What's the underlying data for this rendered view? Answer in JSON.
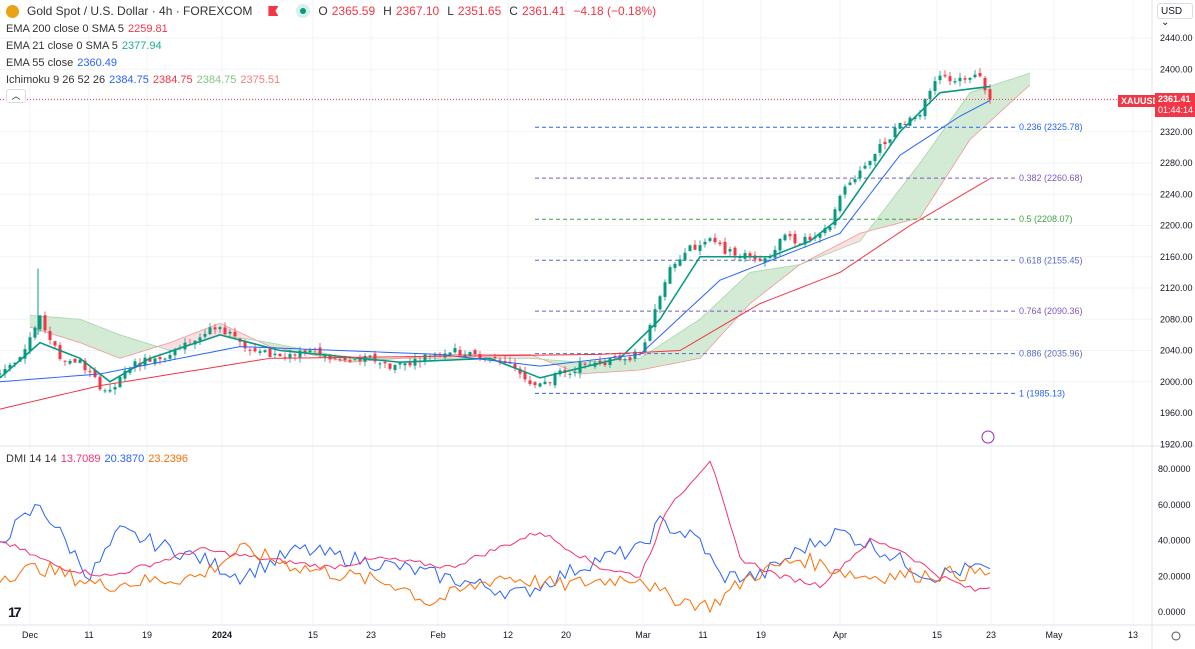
{
  "header": {
    "symbol": "Gold Spot / U.S. Dollar · 4h · FOREXCOM",
    "open_label": "O",
    "open": "2365.59",
    "high_label": "H",
    "high": "2367.10",
    "low_label": "L",
    "low": "2351.65",
    "close_label": "C",
    "close": "2361.41",
    "change": "−4.18 (−0.18%)"
  },
  "indicators": {
    "ema200": {
      "label": "EMA 200 close 0 SMA 5",
      "value": "2259.81"
    },
    "ema21": {
      "label": "EMA 21 close 0 SMA 5",
      "value": "2377.94"
    },
    "ema55": {
      "label": "EMA 55 close",
      "value": "2360.49"
    },
    "ichimoku": {
      "label": "Ichimoku 9 26 52 26",
      "v1": "2384.75",
      "v2": "2384.75",
      "v3": "2384.75",
      "v4": "2375.51"
    },
    "dmi": {
      "label": "DMI 14 14",
      "v1": "13.7089",
      "v2": "20.3870",
      "v3": "23.2396"
    }
  },
  "collapse_icon": "chevron-up-icon",
  "currency": "USD ⌄",
  "price_tag": {
    "symbol": "XAUUSD",
    "price": "2361.41",
    "countdown": "01:44:14"
  },
  "colors": {
    "up": "#089981",
    "down": "#f23645",
    "ema200": "#f23645",
    "ema21": "#089981",
    "ema55": "#2962ff",
    "cloud_up": "#c8e6c9",
    "cloud_down": "#f8d7da",
    "dmi_plus": "#2962ff",
    "dmi_minus": "#f7346e",
    "adx": "#ff6d00"
  },
  "chart_data": [
    {
      "type": "line",
      "title": "Gold Spot / U.S. Dollar 4h",
      "ylim": [
        1920,
        2460
      ],
      "yticks": [
        "2440.00",
        "2400.00",
        "2320.00",
        "2280.00",
        "2240.00",
        "2200.00",
        "2160.00",
        "2120.00",
        "2080.00",
        "2040.00",
        "2000.00",
        "1960.00",
        "1920.00"
      ],
      "xticks": [
        "Dec",
        "11",
        "19",
        "2024",
        "15",
        "23",
        "Feb",
        "12",
        "20",
        "Mar",
        "11",
        "19",
        "Apr",
        "15",
        "23",
        "May",
        "13"
      ],
      "xlim": [
        0,
        240
      ],
      "series": [
        {
          "name": "Price",
          "points": [
            [
              0,
              2010
            ],
            [
              4,
              2035
            ],
            [
              8,
              2080
            ],
            [
              12,
              2030
            ],
            [
              16,
              2025
            ],
            [
              20,
              1995
            ],
            [
              22,
              1985
            ],
            [
              26,
              2020
            ],
            [
              30,
              2030
            ],
            [
              34,
              2035
            ],
            [
              38,
              2050
            ],
            [
              42,
              2065
            ],
            [
              46,
              2065
            ],
            [
              50,
              2040
            ],
            [
              54,
              2035
            ],
            [
              58,
              2035
            ],
            [
              62,
              2040
            ],
            [
              66,
              2030
            ],
            [
              70,
              2025
            ],
            [
              74,
              2030
            ],
            [
              78,
              2020
            ],
            [
              82,
              2025
            ],
            [
              86,
              2035
            ],
            [
              90,
              2040
            ],
            [
              94,
              2035
            ],
            [
              98,
              2030
            ],
            [
              102,
              2025
            ],
            [
              105,
              2000
            ],
            [
              108,
              1995
            ],
            [
              112,
              2010
            ],
            [
              116,
              2020
            ],
            [
              120,
              2025
            ],
            [
              124,
              2030
            ],
            [
              128,
              2035
            ],
            [
              130,
              2070
            ],
            [
              132,
              2110
            ],
            [
              134,
              2150
            ],
            [
              138,
              2170
            ],
            [
              142,
              2180
            ],
            [
              146,
              2165
            ],
            [
              150,
              2160
            ],
            [
              154,
              2160
            ],
            [
              156,
              2185
            ],
            [
              160,
              2180
            ],
            [
              164,
              2185
            ],
            [
              166,
              2200
            ],
            [
              168,
              2240
            ],
            [
              172,
              2270
            ],
            [
              176,
              2300
            ],
            [
              180,
              2330
            ],
            [
              184,
              2345
            ],
            [
              186,
              2370
            ],
            [
              188,
              2390
            ],
            [
              192,
              2385
            ],
            [
              196,
              2390
            ],
            [
              198,
              2361
            ]
          ]
        },
        {
          "name": "EMA 21",
          "points": [
            [
              0,
              2005
            ],
            [
              8,
              2050
            ],
            [
              16,
              2030
            ],
            [
              22,
              2000
            ],
            [
              30,
              2030
            ],
            [
              44,
              2060
            ],
            [
              56,
              2040
            ],
            [
              80,
              2025
            ],
            [
              98,
              2030
            ],
            [
              108,
              2005
            ],
            [
              124,
              2030
            ],
            [
              132,
              2080
            ],
            [
              140,
              2160
            ],
            [
              154,
              2160
            ],
            [
              162,
              2180
            ],
            [
              168,
              2210
            ],
            [
              180,
              2320
            ],
            [
              188,
              2370
            ],
            [
              198,
              2378
            ]
          ]
        },
        {
          "name": "EMA 55",
          "points": [
            [
              0,
              2000
            ],
            [
              20,
              2010
            ],
            [
              48,
              2045
            ],
            [
              88,
              2035
            ],
            [
              108,
              2020
            ],
            [
              128,
              2035
            ],
            [
              144,
              2130
            ],
            [
              156,
              2160
            ],
            [
              168,
              2190
            ],
            [
              180,
              2290
            ],
            [
              192,
              2340
            ],
            [
              198,
              2360
            ]
          ]
        },
        {
          "name": "EMA 200",
          "points": [
            [
              0,
              1965
            ],
            [
              20,
              1995
            ],
            [
              54,
              2030
            ],
            [
              120,
              2035
            ],
            [
              136,
              2040
            ],
            [
              152,
              2100
            ],
            [
              168,
              2140
            ],
            [
              182,
              2200
            ],
            [
              198,
              2260
            ]
          ]
        },
        {
          "name": "Ichimoku Span A",
          "points": [
            [
              6,
              2085
            ],
            [
              16,
              2080
            ],
            [
              24,
              2060
            ],
            [
              34,
              2040
            ],
            [
              44,
              2060
            ],
            [
              54,
              2050
            ],
            [
              70,
              2030
            ],
            [
              90,
              2030
            ],
            [
              106,
              2030
            ],
            [
              116,
              2025
            ],
            [
              128,
              2030
            ],
            [
              140,
              2080
            ],
            [
              150,
              2140
            ],
            [
              160,
              2150
            ],
            [
              172,
              2180
            ],
            [
              184,
              2280
            ],
            [
              194,
              2370
            ],
            [
              206,
              2395
            ]
          ]
        },
        {
          "name": "Ichimoku Span B",
          "points": [
            [
              6,
              2070
            ],
            [
              16,
              2050
            ],
            [
              24,
              2030
            ],
            [
              34,
              2050
            ],
            [
              44,
              2075
            ],
            [
              54,
              2045
            ],
            [
              70,
              2025
            ],
            [
              90,
              2035
            ],
            [
              106,
              2035
            ],
            [
              116,
              2010
            ],
            [
              128,
              2015
            ],
            [
              140,
              2030
            ],
            [
              150,
              2100
            ],
            [
              160,
              2150
            ],
            [
              172,
              2190
            ],
            [
              184,
              2210
            ],
            [
              194,
              2310
            ],
            [
              206,
              2380
            ]
          ]
        }
      ],
      "fibonacci": [
        [
          "0.236",
          "2325.78"
        ],
        [
          "0.382",
          "2260.68"
        ],
        [
          "0.5",
          "2208.07"
        ],
        [
          "0.618",
          "2155.45"
        ],
        [
          "0.764",
          "2090.36"
        ],
        [
          "0.886",
          "2035.96"
        ],
        [
          "1",
          "1985.13"
        ]
      ]
    },
    {
      "type": "line",
      "title": "DMI 14 14",
      "ylim": [
        0,
        85
      ],
      "yticks": [
        "80.0000",
        "60.0000",
        "40.0000",
        "20.0000",
        "0.0000"
      ],
      "series": [
        {
          "name": "DI+",
          "points": [
            [
              0,
              40
            ],
            [
              8,
              60
            ],
            [
              18,
              20
            ],
            [
              24,
              45
            ],
            [
              40,
              30
            ],
            [
              48,
              20
            ],
            [
              60,
              35
            ],
            [
              80,
              25
            ],
            [
              104,
              10
            ],
            [
              120,
              30
            ],
            [
              128,
              35
            ],
            [
              132,
              50
            ],
            [
              140,
              40
            ],
            [
              144,
              20
            ],
            [
              152,
              20
            ],
            [
              160,
              35
            ],
            [
              168,
              45
            ],
            [
              176,
              35
            ],
            [
              186,
              20
            ],
            [
              196,
              25
            ],
            [
              198,
              20
            ]
          ]
        },
        {
          "name": "DI-",
          "points": [
            [
              0,
              40
            ],
            [
              12,
              25
            ],
            [
              22,
              20
            ],
            [
              40,
              35
            ],
            [
              52,
              30
            ],
            [
              66,
              25
            ],
            [
              76,
              30
            ],
            [
              90,
              25
            ],
            [
              108,
              45
            ],
            [
              120,
              25
            ],
            [
              128,
              20
            ],
            [
              134,
              60
            ],
            [
              142,
              85
            ],
            [
              148,
              30
            ],
            [
              156,
              20
            ],
            [
              164,
              15
            ],
            [
              174,
              40
            ],
            [
              180,
              35
            ],
            [
              188,
              20
            ],
            [
              195,
              12
            ],
            [
              198,
              14
            ]
          ]
        },
        {
          "name": "ADX",
          "points": [
            [
              0,
              20
            ],
            [
              8,
              25
            ],
            [
              20,
              15
            ],
            [
              40,
              20
            ],
            [
              48,
              35
            ],
            [
              60,
              25
            ],
            [
              80,
              15
            ],
            [
              86,
              5
            ],
            [
              100,
              20
            ],
            [
              112,
              15
            ],
            [
              128,
              20
            ],
            [
              132,
              10
            ],
            [
              142,
              3
            ],
            [
              150,
              20
            ],
            [
              160,
              30
            ],
            [
              172,
              20
            ],
            [
              198,
              22
            ]
          ]
        }
      ]
    }
  ]
}
